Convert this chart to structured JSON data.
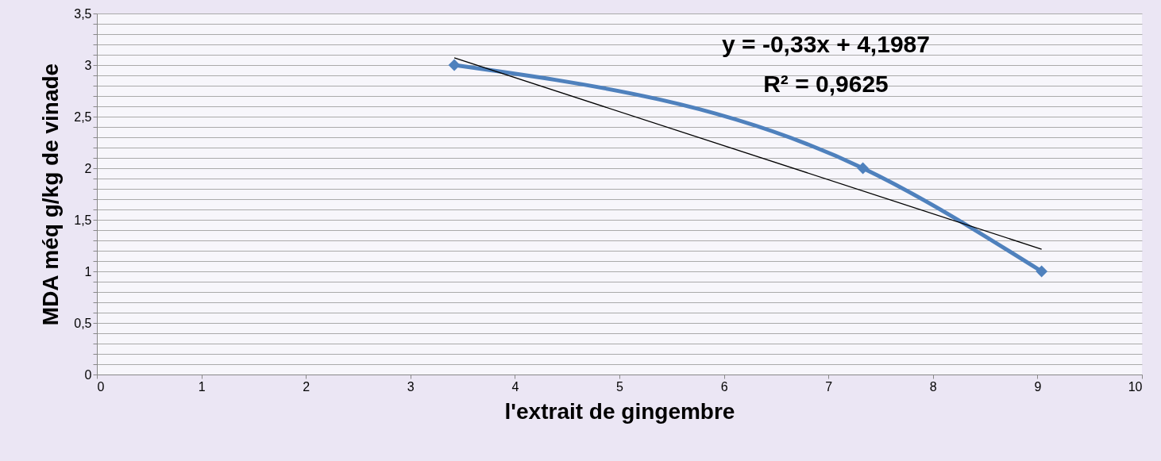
{
  "chart_data": {
    "type": "line",
    "xlabel": "l'extrait de gingembre",
    "ylabel": "MDA méq g/kg de vinade",
    "series": [
      {
        "color": "#4f81bd",
        "x": [
          3.42,
          7.33,
          9.04
        ],
        "values": [
          3,
          2,
          1
        ],
        "marker": "diamond",
        "line_style": "solid"
      },
      {
        "color": "#000000",
        "x": [
          3.42,
          9.04
        ],
        "values": [
          3.07,
          1.215
        ],
        "marker": "none",
        "line_style": "solid"
      }
    ],
    "xlim": [
      0,
      10
    ],
    "xticks": [
      0,
      1,
      2,
      3,
      4,
      5,
      6,
      7,
      8,
      9,
      10
    ],
    "ylim": [
      0,
      3.5
    ],
    "yticks": [
      0,
      {
        "value": 0.1,
        "label": null
      },
      {
        "value": 0.2,
        "label": null
      },
      {
        "value": 0.3,
        "label": null
      },
      {
        "value": 0.4,
        "label": null
      },
      {
        "value": 0.5,
        "label": "0,5"
      },
      {
        "value": 0.6,
        "label": null
      },
      {
        "value": 0.7,
        "label": null
      },
      {
        "value": 0.8,
        "label": null
      },
      {
        "value": 0.9,
        "label": null
      },
      1,
      {
        "value": 1.1,
        "label": null
      },
      {
        "value": 1.2,
        "label": null
      },
      {
        "value": 1.3,
        "label": null
      },
      {
        "value": 1.4,
        "label": null
      },
      {
        "value": 1.5,
        "label": "1,5"
      },
      {
        "value": 1.6,
        "label": null
      },
      {
        "value": 1.7,
        "label": null
      },
      {
        "value": 1.8,
        "label": null
      },
      {
        "value": 1.9,
        "label": null
      },
      2,
      {
        "value": 2.1,
        "label": null
      },
      {
        "value": 2.2,
        "label": null
      },
      {
        "value": 2.3,
        "label": null
      },
      {
        "value": 2.4,
        "label": null
      },
      {
        "value": 2.5,
        "label": "2,5"
      },
      {
        "value": 2.6,
        "label": null
      },
      {
        "value": 2.7,
        "label": null
      },
      {
        "value": 2.8,
        "label": null
      },
      {
        "value": 2.9,
        "label": null
      },
      3,
      {
        "value": 3.1,
        "label": null
      },
      {
        "value": 3.2,
        "label": null
      },
      {
        "value": 3.3,
        "label": null
      },
      {
        "value": 3.4,
        "label": null
      },
      {
        "value": 3.5,
        "label": "3,5"
      }
    ],
    "grid": "y",
    "annotations": [
      "y = -0,33x + 4,1987",
      "R² = 0,9625"
    ]
  }
}
